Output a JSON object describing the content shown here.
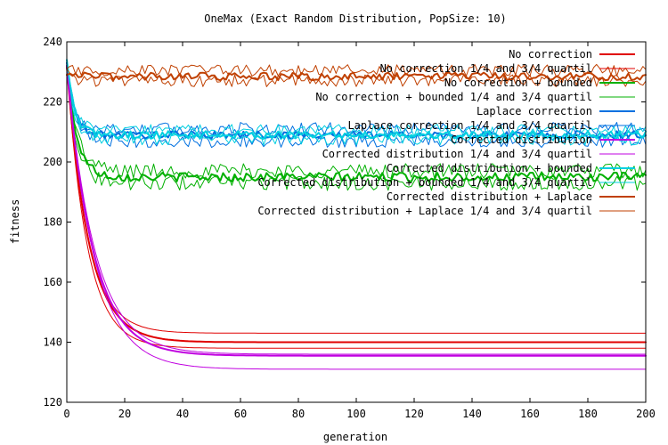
{
  "chart_data": {
    "type": "line",
    "title": "OneMax (Exact Random Distribution, PopSize: 10)",
    "xlabel": "generation",
    "ylabel": "fitness",
    "xlim": [
      0,
      200
    ],
    "ylim": [
      120,
      240
    ],
    "xticks": [
      0,
      20,
      40,
      60,
      80,
      100,
      120,
      140,
      160,
      180,
      200
    ],
    "yticks": [
      120,
      140,
      160,
      180,
      200,
      220,
      240
    ],
    "legend_position": "top-right",
    "series": [
      {
        "name": "No correction",
        "color": "#e00000",
        "width": 2,
        "kind": "decay",
        "start": 232,
        "final": 140,
        "tau": 7.5,
        "noise": 0
      },
      {
        "name": "No correction 1/4 and 3/4 quartil",
        "color": "#e00000",
        "width": 1,
        "kind": "decay-band",
        "start": 232,
        "finals": [
          143,
          138
        ],
        "tau": 7.0,
        "noise": 0
      },
      {
        "name": "No correction + bounded",
        "color": "#00b000",
        "width": 2,
        "kind": "plateau",
        "start": 232,
        "final": 195,
        "tau": 3.5,
        "noise": 1.5
      },
      {
        "name": "No correction + bounded 1/4 and 3/4 quartil",
        "color": "#00b000",
        "width": 1,
        "kind": "plateau-band",
        "start": 232,
        "finals": [
          197,
          193
        ],
        "tau": 3.5,
        "noise": 2.5
      },
      {
        "name": "Laplace correction",
        "color": "#0070e0",
        "width": 2,
        "kind": "plateau",
        "start": 233,
        "final": 209,
        "tau": 2.5,
        "noise": 1.3
      },
      {
        "name": "Laplace correction 1/4 and 3/4 quartil",
        "color": "#0070e0",
        "width": 1,
        "kind": "plateau-band",
        "start": 233,
        "finals": [
          211,
          207
        ],
        "tau": 2.5,
        "noise": 2.2
      },
      {
        "name": "Corrected distribution",
        "color": "#c000e0",
        "width": 2,
        "kind": "decay",
        "start": 232,
        "final": 135.5,
        "tau": 9.0,
        "noise": 0
      },
      {
        "name": "Corrected distribution 1/4 and 3/4 quartil",
        "color": "#c000e0",
        "width": 1,
        "kind": "decay-band",
        "start": 232,
        "finals": [
          136,
          131
        ],
        "tau": 9.5,
        "noise": 0
      },
      {
        "name": "Corrected distribution + bounded",
        "color": "#00d0e0",
        "width": 2,
        "kind": "plateau",
        "start": 234,
        "final": 209,
        "tau": 2.5,
        "noise": 1.3
      },
      {
        "name": "Corrected distribution + bounded 1/4 and 3/4 quartil",
        "color": "#00d0e0",
        "width": 1,
        "kind": "plateau-band",
        "start": 234,
        "finals": [
          210.5,
          207.5
        ],
        "tau": 2.5,
        "noise": 2.0
      },
      {
        "name": "Corrected distribution + Laplace",
        "color": "#c04000",
        "width": 2,
        "kind": "flat",
        "start": 229,
        "final": 228.5,
        "tau": 1,
        "noise": 1.3
      },
      {
        "name": "Corrected distribution + Laplace 1/4 and 3/4 quartil",
        "color": "#c04000",
        "width": 1,
        "kind": "flat-band",
        "start": 231,
        "finals": [
          230.5,
          227
        ],
        "tau": 1,
        "noise": 2.0
      }
    ]
  }
}
